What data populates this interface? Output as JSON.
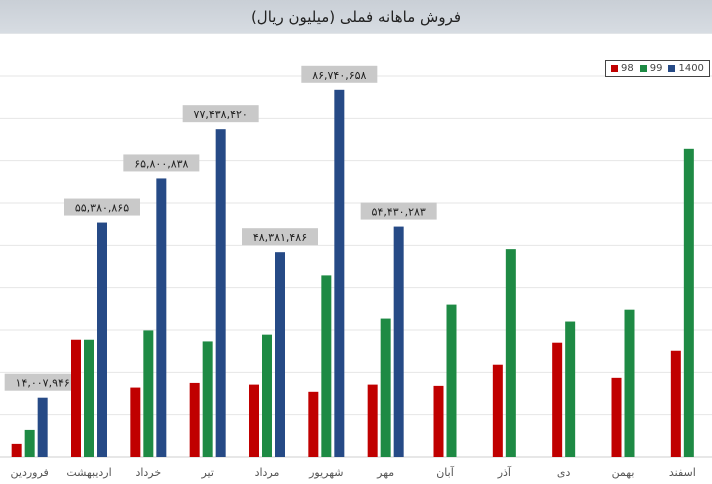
{
  "chart_data": {
    "type": "bar",
    "title": "فروش ماهانه فملی (میلیون ریال)",
    "xlabel": "",
    "ylabel": "",
    "ylim": [
      0,
      90000000
    ],
    "grid": true,
    "legend_position": "top-right",
    "categories": [
      "فروردین",
      "اردیبهشت",
      "خرداد",
      "تیر",
      "مرداد",
      "شهریور",
      "مهر",
      "آبان",
      "آذر",
      "دی",
      "بهمن",
      "اسفند"
    ],
    "series": [
      {
        "name": "98",
        "color": "#c00000",
        "values": [
          3100000,
          27700000,
          16400000,
          17500000,
          17100000,
          15400000,
          17100000,
          16800000,
          21800000,
          27000000,
          18700000,
          25100000
        ]
      },
      {
        "name": "99",
        "color": "#1e8a44",
        "values": [
          6400000,
          27700000,
          29900000,
          27300000,
          28900000,
          42900000,
          32700000,
          36000000,
          49100000,
          32000000,
          34800000,
          72800000
        ]
      },
      {
        "name": "1400",
        "color": "#264a86",
        "values": [
          14007946,
          55380865,
          65800838,
          77438420,
          48381486,
          86740658,
          54430283,
          null,
          null,
          null,
          null,
          null
        ]
      }
    ],
    "data_labels": [
      "۱۴,۰۰۷,۹۴۶",
      "۵۵,۳۸۰,۸۶۵",
      "۶۵,۸۰۰,۸۳۸",
      "۷۷,۴۳۸,۴۲۰",
      "۴۸,۳۸۱,۴۸۶",
      "۸۶,۷۴۰,۶۵۸",
      "۵۴,۴۳۰,۲۸۳"
    ]
  }
}
